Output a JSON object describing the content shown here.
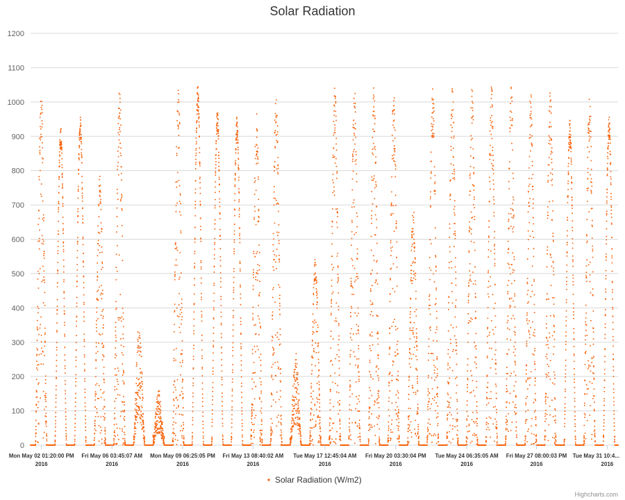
{
  "chart_data": {
    "type": "scatter",
    "title": "Solar Radiation",
    "xlabel": "",
    "ylabel": "",
    "ylim": [
      0,
      1200
    ],
    "yticks": [
      0,
      100,
      200,
      300,
      400,
      500,
      600,
      700,
      800,
      900,
      1000,
      1100,
      1200
    ],
    "xrange": [
      "2016-05-02T00:00:00",
      "2016-06-01T00:00:00"
    ],
    "xticks": [
      {
        "label": "Mon May 02 01:20:00 PM",
        "year": "2016",
        "t": "2016-05-02T13:20:00"
      },
      {
        "label": "Fri May 06 03:45:07 AM",
        "year": "2016",
        "t": "2016-05-06T03:45:07"
      },
      {
        "label": "Mon May 09 06:25:05 PM",
        "year": "2016",
        "t": "2016-05-09T18:25:05"
      },
      {
        "label": "Fri May 13 08:40:02 AM",
        "year": "2016",
        "t": "2016-05-13T08:40:02"
      },
      {
        "label": "Tue May 17 12:45:04 AM",
        "year": "2016",
        "t": "2016-05-17T00:45:04"
      },
      {
        "label": "Fri May 20 03:30:04 PM",
        "year": "2016",
        "t": "2016-05-20T15:30:04"
      },
      {
        "label": "Tue May 24 06:35:05 AM",
        "year": "2016",
        "t": "2016-05-24T06:35:05"
      },
      {
        "label": "Fri May 27 08:00:03 PM",
        "year": "2016",
        "t": "2016-05-27T20:00:03"
      },
      {
        "label": "Tue May 31 10:4...",
        "year": "2016",
        "t": "2016-05-31T10:40:00"
      }
    ],
    "grid": true,
    "legend_position": "bottom-center",
    "series": [
      {
        "name": "Solar Radiation (W/m2)",
        "color": "#f7630c",
        "daily_peak": [
          {
            "date": "2016-05-02",
            "peak": 1050,
            "shape": "cloudy"
          },
          {
            "date": "2016-05-03",
            "peak": 930,
            "shape": "clear"
          },
          {
            "date": "2016-05-04",
            "peak": 960,
            "shape": "clear"
          },
          {
            "date": "2016-05-05",
            "peak": 790,
            "shape": "cloudy"
          },
          {
            "date": "2016-05-06",
            "peak": 1050,
            "shape": "cloudy"
          },
          {
            "date": "2016-05-07",
            "peak": 360,
            "shape": "overcast"
          },
          {
            "date": "2016-05-08",
            "peak": 165,
            "shape": "overcast"
          },
          {
            "date": "2016-05-09",
            "peak": 1050,
            "shape": "cloudy"
          },
          {
            "date": "2016-05-10",
            "peak": 1050,
            "shape": "clear"
          },
          {
            "date": "2016-05-11",
            "peak": 980,
            "shape": "clear"
          },
          {
            "date": "2016-05-12",
            "peak": 960,
            "shape": "clear"
          },
          {
            "date": "2016-05-13",
            "peak": 970,
            "shape": "cloudy"
          },
          {
            "date": "2016-05-14",
            "peak": 1050,
            "shape": "cloudy"
          },
          {
            "date": "2016-05-15",
            "peak": 270,
            "shape": "overcast"
          },
          {
            "date": "2016-05-16",
            "peak": 550,
            "shape": "cloudy"
          },
          {
            "date": "2016-05-17",
            "peak": 1050,
            "shape": "cloudy"
          },
          {
            "date": "2016-05-18",
            "peak": 1050,
            "shape": "cloudy"
          },
          {
            "date": "2016-05-19",
            "peak": 1050,
            "shape": "cloudy"
          },
          {
            "date": "2016-05-20",
            "peak": 1050,
            "shape": "cloudy"
          },
          {
            "date": "2016-05-21",
            "peak": 700,
            "shape": "cloudy"
          },
          {
            "date": "2016-05-22",
            "peak": 1050,
            "shape": "cloudy"
          },
          {
            "date": "2016-05-23",
            "peak": 1050,
            "shape": "cloudy"
          },
          {
            "date": "2016-05-24",
            "peak": 1050,
            "shape": "cloudy"
          },
          {
            "date": "2016-05-25",
            "peak": 1050,
            "shape": "cloudy"
          },
          {
            "date": "2016-05-26",
            "peak": 1050,
            "shape": "cloudy"
          },
          {
            "date": "2016-05-27",
            "peak": 1050,
            "shape": "cloudy"
          },
          {
            "date": "2016-05-28",
            "peak": 1050,
            "shape": "cloudy"
          },
          {
            "date": "2016-05-29",
            "peak": 950,
            "shape": "clear"
          },
          {
            "date": "2016-05-30",
            "peak": 1050,
            "shape": "cloudy"
          },
          {
            "date": "2016-05-31",
            "peak": 960,
            "shape": "clear"
          },
          {
            "date": "2016-06-01",
            "peak": 970,
            "shape": "clear"
          }
        ]
      }
    ]
  },
  "credits": "Highcharts.com",
  "colors": {
    "series": "#f7630c",
    "grid": "#d8d8d8",
    "text": "#333333",
    "axis": "#606060"
  }
}
